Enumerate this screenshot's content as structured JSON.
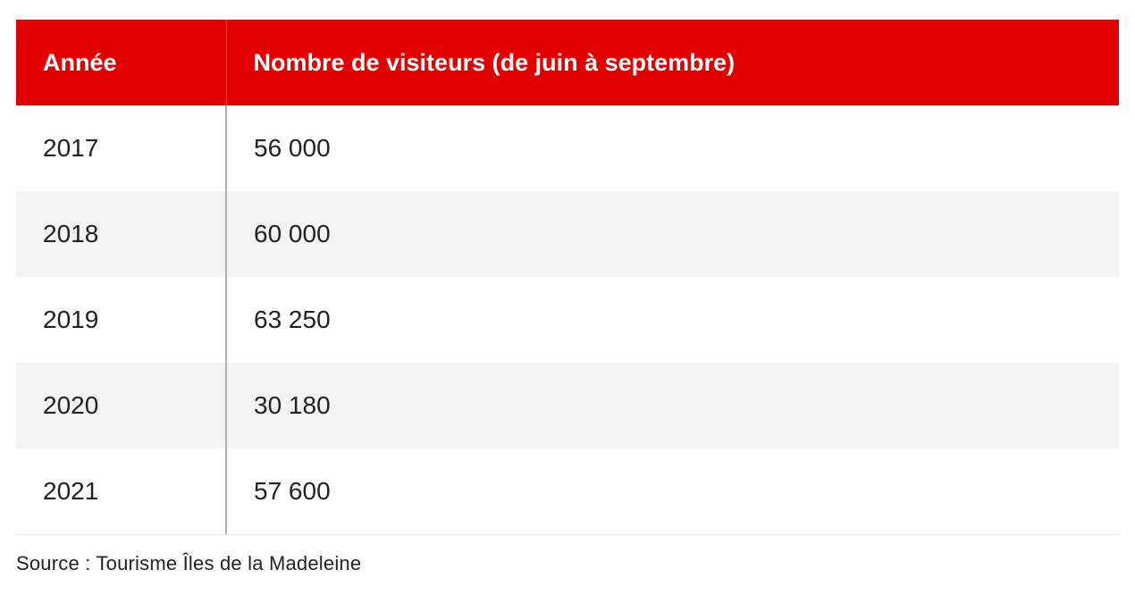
{
  "chart_data": {
    "type": "table",
    "columns": [
      "Année",
      "Nombre de visiteurs (de juin à septembre)"
    ],
    "rows": [
      {
        "year": "2017",
        "visitors": "56 000"
      },
      {
        "year": "2018",
        "visitors": "60 000"
      },
      {
        "year": "2019",
        "visitors": "63 250"
      },
      {
        "year": "2020",
        "visitors": "30 180"
      },
      {
        "year": "2021",
        "visitors": "57 600"
      }
    ],
    "source": "Source : Tourisme Îles de la Madeleine"
  },
  "colors": {
    "header_bg": "#e00000",
    "header_text": "#ffffff",
    "zebra_row": "#f3f3f3"
  }
}
